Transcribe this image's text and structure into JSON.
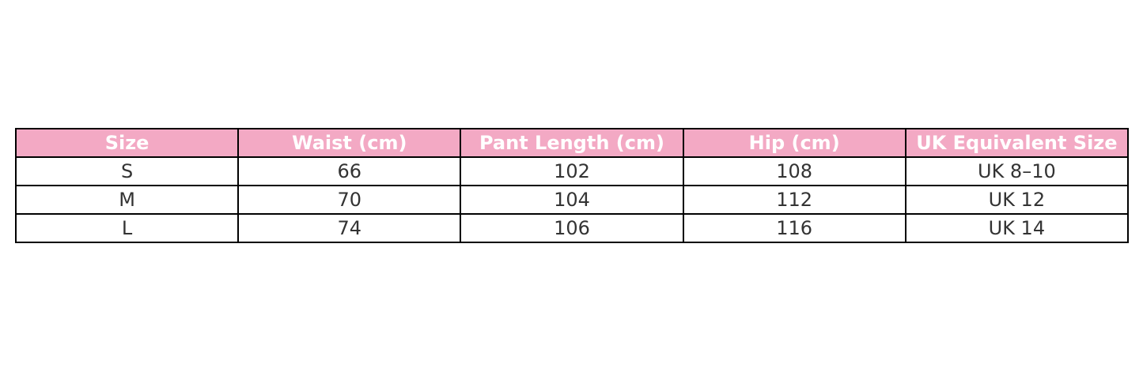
{
  "colors": {
    "header_bg": "#f3a9c4",
    "header_text": "#ffffff",
    "cell_text": "#333333",
    "border": "#000000"
  },
  "table": {
    "headers": [
      "Size",
      "Waist (cm)",
      "Pant Length (cm)",
      "Hip (cm)",
      "UK Equivalent Size"
    ],
    "rows": [
      [
        "S",
        "66",
        "102",
        "108",
        "UK 8–10"
      ],
      [
        "M",
        "70",
        "104",
        "112",
        "UK 12"
      ],
      [
        "L",
        "74",
        "106",
        "116",
        "UK 14"
      ]
    ]
  }
}
